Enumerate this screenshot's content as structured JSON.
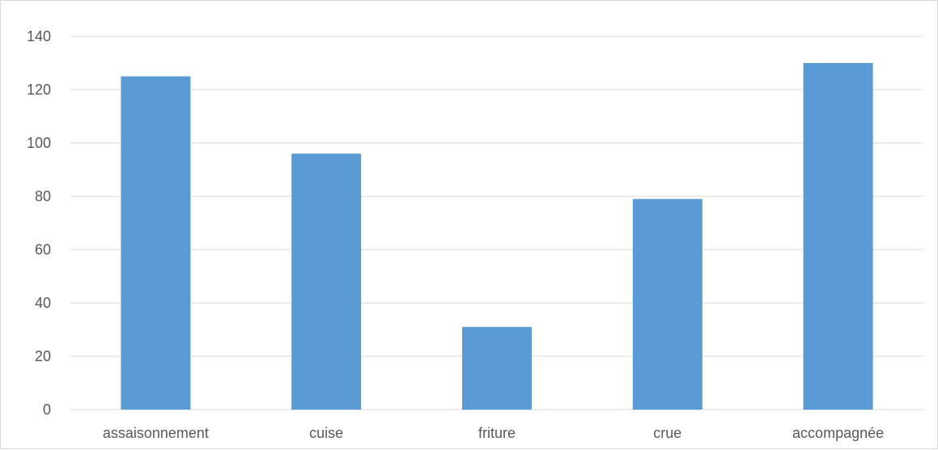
{
  "chart_data": {
    "type": "bar",
    "categories": [
      "assaisonnement",
      "cuise",
      "friture",
      "crue",
      "accompagnée"
    ],
    "values": [
      125,
      96,
      31,
      79,
      130
    ],
    "yticks": [
      0,
      20,
      40,
      60,
      80,
      100,
      120,
      140
    ],
    "ylim": [
      0,
      140
    ],
    "grid": true,
    "legend": "none",
    "bar_color": "#5b9bd5",
    "gridline_color": "#d9d9d9"
  }
}
